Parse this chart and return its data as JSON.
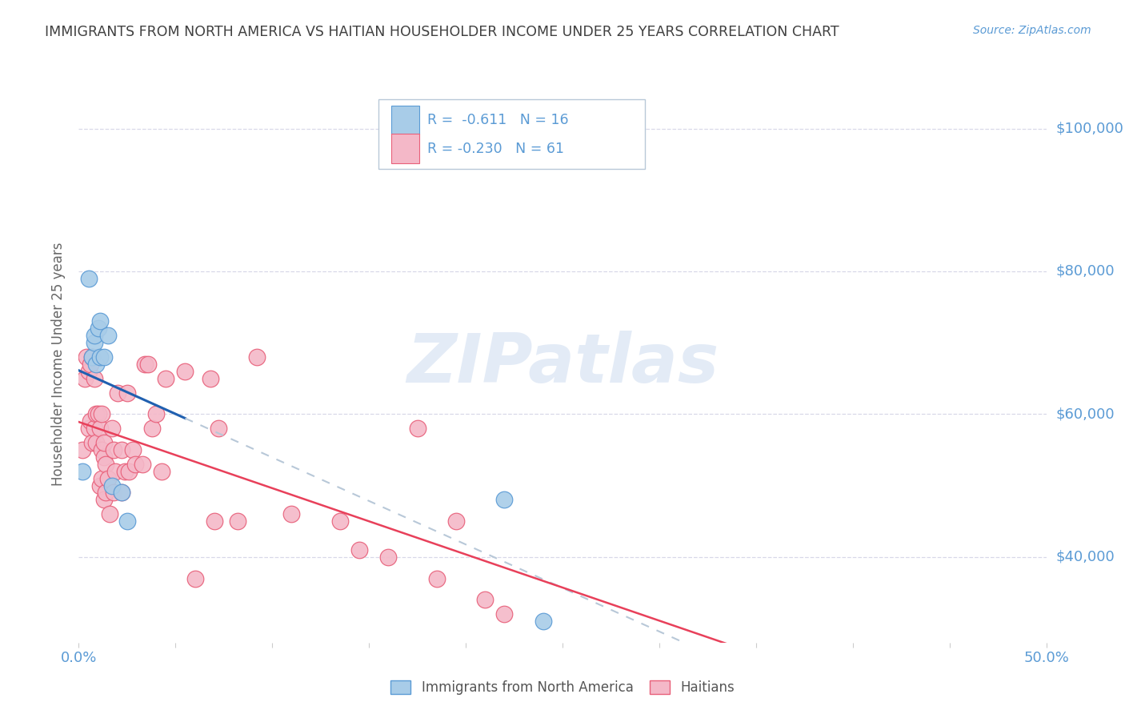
{
  "title": "IMMIGRANTS FROM NORTH AMERICA VS HAITIAN HOUSEHOLDER INCOME UNDER 25 YEARS CORRELATION CHART",
  "source": "Source: ZipAtlas.com",
  "ylabel": "Householder Income Under 25 years",
  "ylabel_right_ticks": [
    "$100,000",
    "$80,000",
    "$60,000",
    "$40,000"
  ],
  "ylabel_right_values": [
    100000,
    80000,
    60000,
    40000
  ],
  "legend_label1": "Immigrants from North America",
  "legend_label2": "Haitians",
  "color_blue": "#a8cce8",
  "color_pink": "#f4b8c8",
  "color_blue_edge": "#5b9bd5",
  "color_pink_edge": "#e8607a",
  "color_line_blue": "#2060b0",
  "color_line_pink": "#e8405a",
  "color_line_dashed": "#b8c8d8",
  "watermark": "ZIPatlas",
  "xlim": [
    0.0,
    0.5
  ],
  "ylim": [
    28000,
    106000
  ],
  "north_america_x": [
    0.002,
    0.005,
    0.007,
    0.008,
    0.008,
    0.009,
    0.01,
    0.011,
    0.011,
    0.013,
    0.015,
    0.017,
    0.022,
    0.025,
    0.22,
    0.24
  ],
  "north_america_y": [
    52000,
    79000,
    68000,
    70000,
    71000,
    67000,
    72000,
    68000,
    73000,
    68000,
    71000,
    50000,
    49000,
    45000,
    48000,
    31000
  ],
  "haitians_x": [
    0.002,
    0.003,
    0.004,
    0.005,
    0.005,
    0.006,
    0.006,
    0.007,
    0.007,
    0.008,
    0.008,
    0.009,
    0.009,
    0.01,
    0.011,
    0.011,
    0.012,
    0.012,
    0.012,
    0.013,
    0.013,
    0.013,
    0.014,
    0.014,
    0.015,
    0.016,
    0.017,
    0.018,
    0.018,
    0.019,
    0.02,
    0.022,
    0.022,
    0.024,
    0.025,
    0.026,
    0.028,
    0.029,
    0.033,
    0.034,
    0.036,
    0.038,
    0.04,
    0.043,
    0.045,
    0.055,
    0.06,
    0.068,
    0.07,
    0.072,
    0.082,
    0.092,
    0.11,
    0.135,
    0.145,
    0.16,
    0.175,
    0.185,
    0.195,
    0.21,
    0.22
  ],
  "haitians_y": [
    55000,
    65000,
    68000,
    66000,
    58000,
    67000,
    59000,
    68000,
    56000,
    65000,
    58000,
    60000,
    56000,
    60000,
    50000,
    58000,
    55000,
    60000,
    51000,
    54000,
    56000,
    48000,
    53000,
    49000,
    51000,
    46000,
    58000,
    55000,
    49000,
    52000,
    63000,
    55000,
    49000,
    52000,
    63000,
    52000,
    55000,
    53000,
    53000,
    67000,
    67000,
    58000,
    60000,
    52000,
    65000,
    66000,
    37000,
    65000,
    45000,
    58000,
    45000,
    68000,
    46000,
    45000,
    41000,
    40000,
    58000,
    37000,
    45000,
    34000,
    32000
  ],
  "background_color": "#ffffff",
  "grid_color": "#d8d8e8",
  "title_color": "#404040",
  "axis_label_color": "#5b9bd5",
  "watermark_color": "#c8d8ee",
  "watermark_alpha": 0.5,
  "legend_box_color": "#e8f0f8",
  "legend_box_edge": "#b8c8d8"
}
